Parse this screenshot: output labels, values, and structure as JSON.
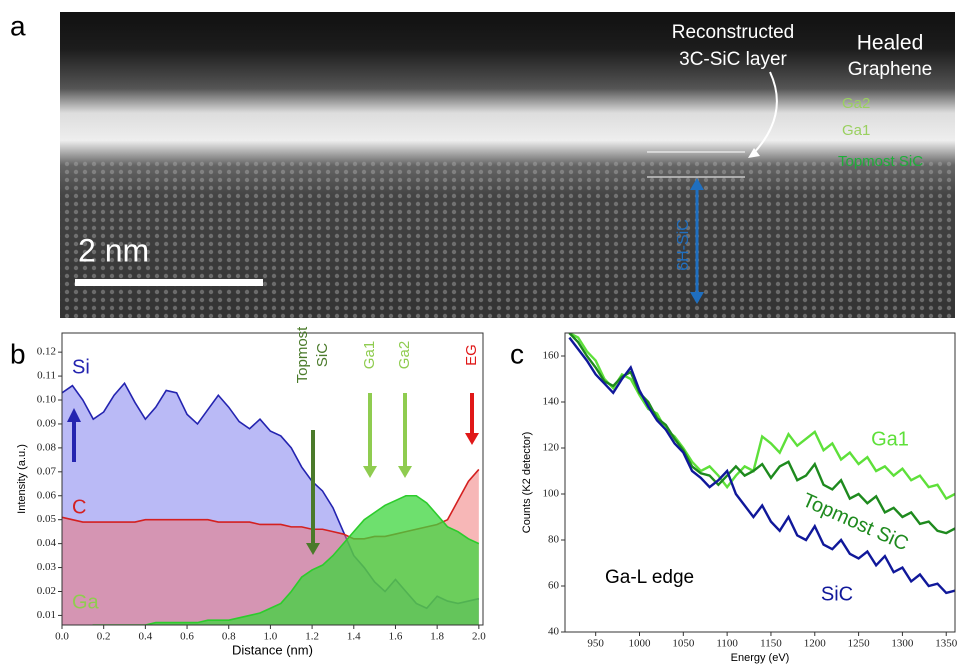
{
  "panel_a": {
    "panel_label": "a",
    "reconstructed": [
      "Reconstructed",
      "3C-SiC layer"
    ],
    "healed": [
      "Healed",
      "Graphene"
    ],
    "ga2": "Ga2",
    "ga1": "Ga1",
    "topmost": "Topmost SiC",
    "sic6h": "6H-SiC",
    "scale": "2 nm"
  },
  "chart_data": [
    {
      "type": "area",
      "panel_label": "b",
      "xlabel": "Distance (nm)",
      "ylabel": "Intensity (a.u.)",
      "x": [
        0,
        0.05,
        0.1,
        0.15,
        0.2,
        0.25,
        0.3,
        0.35,
        0.4,
        0.45,
        0.5,
        0.55,
        0.6,
        0.65,
        0.7,
        0.75,
        0.8,
        0.85,
        0.9,
        0.95,
        1.0,
        1.05,
        1.1,
        1.15,
        1.2,
        1.25,
        1.3,
        1.35,
        1.4,
        1.45,
        1.5,
        1.55,
        1.6,
        1.65,
        1.7,
        1.75,
        1.8,
        1.85,
        1.9,
        1.95,
        2.0
      ],
      "series": [
        {
          "name": "Si",
          "color": "#2424b0",
          "fill": "#8c8cf0",
          "values": [
            0.103,
            0.106,
            0.1,
            0.092,
            0.095,
            0.102,
            0.107,
            0.099,
            0.092,
            0.097,
            0.104,
            0.103,
            0.094,
            0.09,
            0.096,
            0.102,
            0.097,
            0.091,
            0.088,
            0.092,
            0.087,
            0.085,
            0.08,
            0.072,
            0.066,
            0.062,
            0.055,
            0.045,
            0.035,
            0.03,
            0.024,
            0.02,
            0.025,
            0.02,
            0.015,
            0.013,
            0.018,
            0.016,
            0.015,
            0.016,
            0.017
          ]
        },
        {
          "name": "C",
          "color": "#d42020",
          "fill": "#f07070",
          "values": [
            0.051,
            0.05,
            0.049,
            0.049,
            0.049,
            0.049,
            0.049,
            0.049,
            0.05,
            0.05,
            0.05,
            0.05,
            0.05,
            0.05,
            0.05,
            0.049,
            0.049,
            0.049,
            0.049,
            0.048,
            0.048,
            0.048,
            0.047,
            0.047,
            0.046,
            0.046,
            0.045,
            0.044,
            0.042,
            0.042,
            0.043,
            0.043,
            0.044,
            0.045,
            0.046,
            0.047,
            0.048,
            0.05,
            0.058,
            0.066,
            0.071
          ]
        },
        {
          "name": "Ga",
          "color": "#2ccc2c",
          "fill": "#3ed63e",
          "values": [
            0.005,
            0.005,
            0.005,
            0.006,
            0.006,
            0.006,
            0.006,
            0.006,
            0.006,
            0.007,
            0.007,
            0.007,
            0.007,
            0.007,
            0.008,
            0.008,
            0.008,
            0.009,
            0.01,
            0.011,
            0.013,
            0.015,
            0.02,
            0.026,
            0.029,
            0.031,
            0.035,
            0.04,
            0.045,
            0.05,
            0.053,
            0.056,
            0.058,
            0.06,
            0.06,
            0.057,
            0.052,
            0.047,
            0.045,
            0.042,
            0.04
          ]
        }
      ],
      "annotations": [
        {
          "lines": [
            "Topmost",
            "SiC"
          ],
          "color": "#4a7a2a"
        },
        {
          "lines": [
            "Ga1"
          ],
          "color": "#8fcc50"
        },
        {
          "lines": [
            "Ga2"
          ],
          "color": "#8fcc50"
        },
        {
          "lines": [
            "EG"
          ],
          "color": "#e01818"
        }
      ],
      "xlim": [
        0,
        2.02
      ],
      "ylim": [
        0.006,
        0.128
      ],
      "xticks": [
        {
          "value": 0,
          "label": "0.0"
        },
        0.2,
        0.4,
        0.6,
        0.8,
        {
          "value": 1,
          "label": "1.0"
        },
        1.2,
        1.4,
        1.6,
        1.8,
        {
          "value": 2,
          "label": "2.0"
        }
      ],
      "yticks": [
        0.01,
        0.02,
        0.03,
        0.04,
        0.05,
        0.06,
        0.07,
        0.08,
        0.09,
        {
          "value": 0.1,
          "label": "0.10"
        },
        0.11,
        0.12
      ]
    },
    {
      "type": "line",
      "panel_label": "c",
      "xlabel": "Energy (eV)",
      "ylabel": "Counts (K2 detector)",
      "annotation": "Ga-L edge",
      "x": [
        920,
        930,
        940,
        950,
        960,
        970,
        980,
        990,
        1000,
        1010,
        1020,
        1030,
        1040,
        1050,
        1060,
        1070,
        1080,
        1090,
        1100,
        1110,
        1120,
        1130,
        1140,
        1150,
        1160,
        1170,
        1180,
        1190,
        1200,
        1210,
        1220,
        1230,
        1240,
        1250,
        1260,
        1270,
        1280,
        1290,
        1300,
        1310,
        1320,
        1330,
        1340,
        1350,
        1360
      ],
      "series": [
        {
          "name": "Ga1",
          "color": "#5ee03a",
          "values": [
            170,
            168,
            162,
            158,
            150,
            146,
            152,
            150,
            143,
            137,
            135,
            128,
            125,
            120,
            114,
            110,
            112,
            108,
            103,
            108,
            112,
            110,
            125,
            122,
            118,
            126,
            121,
            124,
            127,
            119,
            122,
            115,
            118,
            113,
            116,
            110,
            112,
            108,
            111,
            106,
            108,
            103,
            104,
            98,
            100
          ]
        },
        {
          "name": "Topmost SiC",
          "color": "#1e8a1e",
          "values": [
            170,
            166,
            160,
            155,
            149,
            147,
            151,
            153,
            144,
            140,
            133,
            130,
            124,
            119,
            112,
            109,
            108,
            104,
            108,
            112,
            108,
            110,
            113,
            107,
            112,
            114,
            106,
            108,
            113,
            104,
            102,
            106,
            98,
            100,
            96,
            99,
            92,
            94,
            90,
            92,
            87,
            88,
            84,
            83,
            85
          ]
        },
        {
          "name": "SiC",
          "color": "#10189a",
          "values": [
            168,
            163,
            158,
            152,
            148,
            144,
            150,
            155,
            145,
            138,
            132,
            128,
            122,
            118,
            110,
            107,
            103,
            106,
            110,
            100,
            95,
            90,
            95,
            88,
            84,
            90,
            82,
            80,
            86,
            78,
            76,
            80,
            74,
            72,
            75,
            69,
            73,
            66,
            68,
            62,
            65,
            60,
            61,
            57,
            58
          ]
        }
      ],
      "xlim": [
        915,
        1360
      ],
      "ylim": [
        40,
        170
      ],
      "xticks": [
        950,
        1000,
        1050,
        1100,
        1150,
        1200,
        1250,
        1300,
        1350
      ],
      "yticks": [
        40,
        60,
        80,
        100,
        120,
        140,
        160
      ]
    }
  ]
}
